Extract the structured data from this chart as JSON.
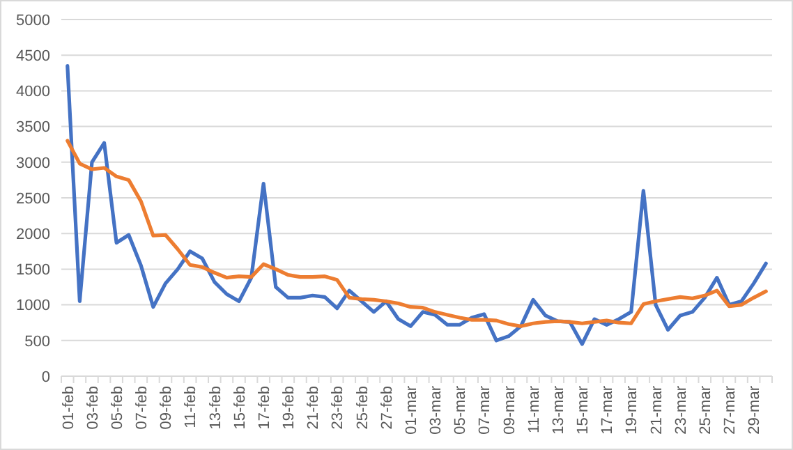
{
  "chart_data": {
    "type": "line",
    "categories": [
      "01-feb",
      null,
      "03-feb",
      null,
      "05-feb",
      null,
      "07-feb",
      null,
      "09-feb",
      null,
      "11-feb",
      null,
      "13-feb",
      null,
      "15-feb",
      null,
      "17-feb",
      null,
      "19-feb",
      null,
      "21-feb",
      null,
      "23-feb",
      null,
      "25-feb",
      null,
      "27-feb",
      null,
      "01-mar",
      null,
      "03-mar",
      null,
      "05-mar",
      null,
      "07-mar",
      null,
      "09-mar",
      null,
      "11-mar",
      null,
      "13-mar",
      null,
      "15-mar",
      null,
      "17-mar",
      null,
      "19-mar",
      null,
      "21-mar",
      null,
      "23-mar",
      null,
      "25-mar",
      null,
      "27-mar",
      null,
      "29-mar",
      null
    ],
    "series": [
      {
        "color": "#4472c4",
        "values": [
          4350,
          1050,
          3000,
          3270,
          1870,
          1980,
          1550,
          970,
          1300,
          1500,
          1750,
          1650,
          1320,
          1150,
          1050,
          1380,
          2700,
          1250,
          1100,
          1100,
          1130,
          1110,
          950,
          1200,
          1050,
          900,
          1050,
          800,
          700,
          900,
          860,
          720,
          720,
          820,
          870,
          500,
          560,
          700,
          1070,
          850,
          770,
          760,
          450,
          800,
          720,
          800,
          900,
          2600,
          1000,
          650,
          850,
          900,
          1100,
          1380,
          1000,
          1050,
          1300,
          1580
        ]
      },
      {
        "color": "#ed7d31",
        "values": [
          3300,
          2980,
          2900,
          2920,
          2800,
          2750,
          2450,
          1970,
          1980,
          1780,
          1560,
          1530,
          1450,
          1380,
          1400,
          1390,
          1570,
          1500,
          1420,
          1390,
          1390,
          1400,
          1350,
          1100,
          1080,
          1070,
          1050,
          1020,
          970,
          960,
          900,
          860,
          820,
          790,
          790,
          780,
          730,
          700,
          740,
          760,
          770,
          760,
          740,
          760,
          780,
          750,
          740,
          1010,
          1050,
          1080,
          1110,
          1090,
          1130,
          1200,
          980,
          1000,
          1100,
          1190
        ]
      }
    ],
    "ylim": [
      0,
      5000
    ],
    "yticks": [
      0,
      500,
      1000,
      1500,
      2000,
      2500,
      3000,
      3500,
      4000,
      4500,
      5000
    ],
    "grid": "y",
    "marker": "none",
    "line_style": "solid"
  }
}
